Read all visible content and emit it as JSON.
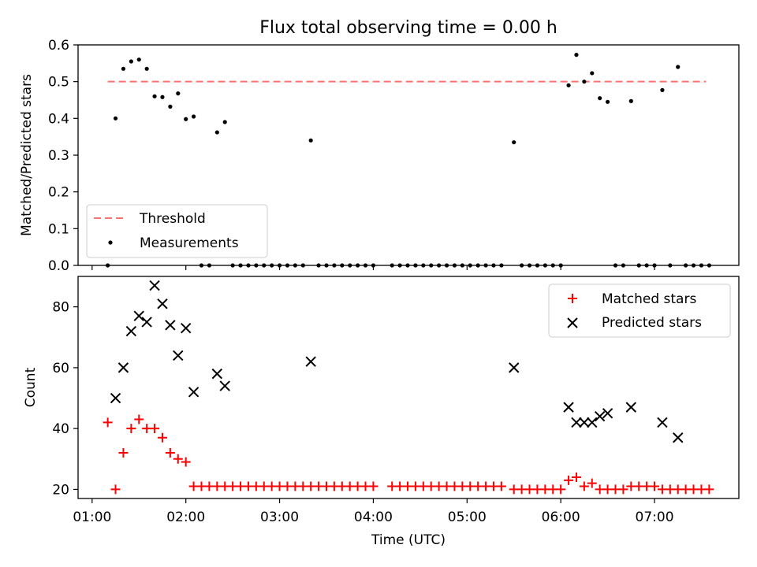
{
  "chart_data": [
    {
      "type": "scatter",
      "title": "Flux total observing time = 0.00 h",
      "ylabel": "Matched/Predicted stars",
      "ylim": [
        0,
        0.6
      ],
      "yticks": [
        "0.0",
        "0.1",
        "0.2",
        "0.3",
        "0.4",
        "0.5",
        "0.6"
      ],
      "xlim": [
        "00:51",
        "07:54"
      ],
      "legend_position": "lower-left",
      "threshold": {
        "name": "Threshold",
        "value": 0.5,
        "x_range": [
          "01:10",
          "07:33"
        ],
        "color": "#ff7070"
      },
      "series": [
        {
          "name": "Measurements",
          "color": "#000000",
          "points": [
            [
              "01:10",
              0.0
            ],
            [
              "01:15",
              0.4
            ],
            [
              "01:20",
              0.535
            ],
            [
              "01:25",
              0.555
            ],
            [
              "01:30",
              0.56
            ],
            [
              "01:35",
              0.535
            ],
            [
              "01:40",
              0.46
            ],
            [
              "01:45",
              0.458
            ],
            [
              "01:50",
              0.432
            ],
            [
              "01:55",
              0.468
            ],
            [
              "02:00",
              0.398
            ],
            [
              "02:05",
              0.405
            ],
            [
              "02:10",
              0.0
            ],
            [
              "02:15",
              0.0
            ],
            [
              "02:20",
              0.362
            ],
            [
              "02:25",
              0.39
            ],
            [
              "02:30",
              0.0
            ],
            [
              "02:35",
              0.0
            ],
            [
              "02:40",
              0.0
            ],
            [
              "02:45",
              0.0
            ],
            [
              "02:50",
              0.0
            ],
            [
              "02:55",
              0.0
            ],
            [
              "03:00",
              0.0
            ],
            [
              "03:05",
              0.0
            ],
            [
              "03:10",
              0.0
            ],
            [
              "03:15",
              0.0
            ],
            [
              "03:20",
              0.34
            ],
            [
              "03:25",
              0.0
            ],
            [
              "03:30",
              0.0
            ],
            [
              "03:35",
              0.0
            ],
            [
              "03:40",
              0.0
            ],
            [
              "03:45",
              0.0
            ],
            [
              "03:50",
              0.0
            ],
            [
              "03:55",
              0.0
            ],
            [
              "04:00",
              0.0
            ],
            [
              "04:12",
              0.0
            ],
            [
              "04:17",
              0.0
            ],
            [
              "04:22",
              0.0
            ],
            [
              "04:27",
              0.0
            ],
            [
              "04:32",
              0.0
            ],
            [
              "04:37",
              0.0
            ],
            [
              "04:42",
              0.0
            ],
            [
              "04:47",
              0.0
            ],
            [
              "04:52",
              0.0
            ],
            [
              "04:57",
              0.0
            ],
            [
              "05:02",
              0.0
            ],
            [
              "05:07",
              0.0
            ],
            [
              "05:12",
              0.0
            ],
            [
              "05:17",
              0.0
            ],
            [
              "05:22",
              0.0
            ],
            [
              "05:30",
              0.335
            ],
            [
              "05:35",
              0.0
            ],
            [
              "05:40",
              0.0
            ],
            [
              "05:45",
              0.0
            ],
            [
              "05:50",
              0.0
            ],
            [
              "05:55",
              0.0
            ],
            [
              "06:00",
              0.0
            ],
            [
              "06:05",
              0.49
            ],
            [
              "06:10",
              0.573
            ],
            [
              "06:15",
              0.5
            ],
            [
              "06:20",
              0.523
            ],
            [
              "06:25",
              0.455
            ],
            [
              "06:30",
              0.445
            ],
            [
              "06:35",
              0.0
            ],
            [
              "06:40",
              0.0
            ],
            [
              "06:45",
              0.447
            ],
            [
              "06:50",
              0.0
            ],
            [
              "06:55",
              0.0
            ],
            [
              "07:00",
              0.0
            ],
            [
              "07:05",
              0.477
            ],
            [
              "07:10",
              0.0
            ],
            [
              "07:15",
              0.54
            ],
            [
              "07:20",
              0.0
            ],
            [
              "07:25",
              0.0
            ],
            [
              "07:30",
              0.0
            ],
            [
              "07:35",
              0.0
            ]
          ]
        }
      ]
    },
    {
      "type": "scatter",
      "xlabel": "Time (UTC)",
      "ylabel": "Count",
      "ylim": [
        17,
        90
      ],
      "yticks": [
        "20",
        "40",
        "60",
        "80"
      ],
      "xlim": [
        "00:51",
        "07:54"
      ],
      "xticks": [
        "01:00",
        "02:00",
        "03:00",
        "04:00",
        "05:00",
        "06:00",
        "07:00"
      ],
      "legend_position": "upper-right",
      "series": [
        {
          "name": "Matched stars",
          "marker": "plus",
          "color": "#ff0000",
          "points": [
            [
              "01:10",
              42
            ],
            [
              "01:15",
              20
            ],
            [
              "01:20",
              32
            ],
            [
              "01:25",
              40
            ],
            [
              "01:30",
              43
            ],
            [
              "01:35",
              40
            ],
            [
              "01:40",
              40
            ],
            [
              "01:45",
              37
            ],
            [
              "01:50",
              32
            ],
            [
              "01:55",
              30
            ],
            [
              "02:00",
              29
            ],
            [
              "02:05",
              21
            ],
            [
              "02:10",
              21
            ],
            [
              "02:15",
              21
            ],
            [
              "02:20",
              21
            ],
            [
              "02:25",
              21
            ],
            [
              "02:30",
              21
            ],
            [
              "02:35",
              21
            ],
            [
              "02:40",
              21
            ],
            [
              "02:45",
              21
            ],
            [
              "02:50",
              21
            ],
            [
              "02:55",
              21
            ],
            [
              "03:00",
              21
            ],
            [
              "03:05",
              21
            ],
            [
              "03:10",
              21
            ],
            [
              "03:15",
              21
            ],
            [
              "03:20",
              21
            ],
            [
              "03:25",
              21
            ],
            [
              "03:30",
              21
            ],
            [
              "03:35",
              21
            ],
            [
              "03:40",
              21
            ],
            [
              "03:45",
              21
            ],
            [
              "03:50",
              21
            ],
            [
              "03:55",
              21
            ],
            [
              "04:00",
              21
            ],
            [
              "04:12",
              21
            ],
            [
              "04:17",
              21
            ],
            [
              "04:22",
              21
            ],
            [
              "04:27",
              21
            ],
            [
              "04:32",
              21
            ],
            [
              "04:37",
              21
            ],
            [
              "04:42",
              21
            ],
            [
              "04:47",
              21
            ],
            [
              "04:52",
              21
            ],
            [
              "04:57",
              21
            ],
            [
              "05:02",
              21
            ],
            [
              "05:07",
              21
            ],
            [
              "05:12",
              21
            ],
            [
              "05:17",
              21
            ],
            [
              "05:22",
              21
            ],
            [
              "05:30",
              20
            ],
            [
              "05:35",
              20
            ],
            [
              "05:40",
              20
            ],
            [
              "05:45",
              20
            ],
            [
              "05:50",
              20
            ],
            [
              "05:55",
              20
            ],
            [
              "06:00",
              20
            ],
            [
              "06:05",
              23
            ],
            [
              "06:10",
              24
            ],
            [
              "06:15",
              21
            ],
            [
              "06:20",
              22
            ],
            [
              "06:25",
              20
            ],
            [
              "06:30",
              20
            ],
            [
              "06:35",
              20
            ],
            [
              "06:40",
              20
            ],
            [
              "06:45",
              21
            ],
            [
              "06:50",
              21
            ],
            [
              "06:55",
              21
            ],
            [
              "07:00",
              21
            ],
            [
              "07:05",
              20
            ],
            [
              "07:10",
              20
            ],
            [
              "07:15",
              20
            ],
            [
              "07:20",
              20
            ],
            [
              "07:25",
              20
            ],
            [
              "07:30",
              20
            ],
            [
              "07:35",
              20
            ]
          ]
        },
        {
          "name": "Predicted stars",
          "marker": "x",
          "color": "#000000",
          "points": [
            [
              "01:15",
              50
            ],
            [
              "01:20",
              60
            ],
            [
              "01:25",
              72
            ],
            [
              "01:30",
              77
            ],
            [
              "01:35",
              75
            ],
            [
              "01:40",
              87
            ],
            [
              "01:45",
              81
            ],
            [
              "01:50",
              74
            ],
            [
              "01:55",
              64
            ],
            [
              "02:00",
              73
            ],
            [
              "02:05",
              52
            ],
            [
              "02:20",
              58
            ],
            [
              "02:25",
              54
            ],
            [
              "03:20",
              62
            ],
            [
              "05:30",
              60
            ],
            [
              "06:05",
              47
            ],
            [
              "06:10",
              42
            ],
            [
              "06:15",
              42
            ],
            [
              "06:20",
              42
            ],
            [
              "06:25",
              44
            ],
            [
              "06:30",
              45
            ],
            [
              "06:45",
              47
            ],
            [
              "07:05",
              42
            ],
            [
              "07:15",
              37
            ]
          ]
        }
      ]
    }
  ]
}
